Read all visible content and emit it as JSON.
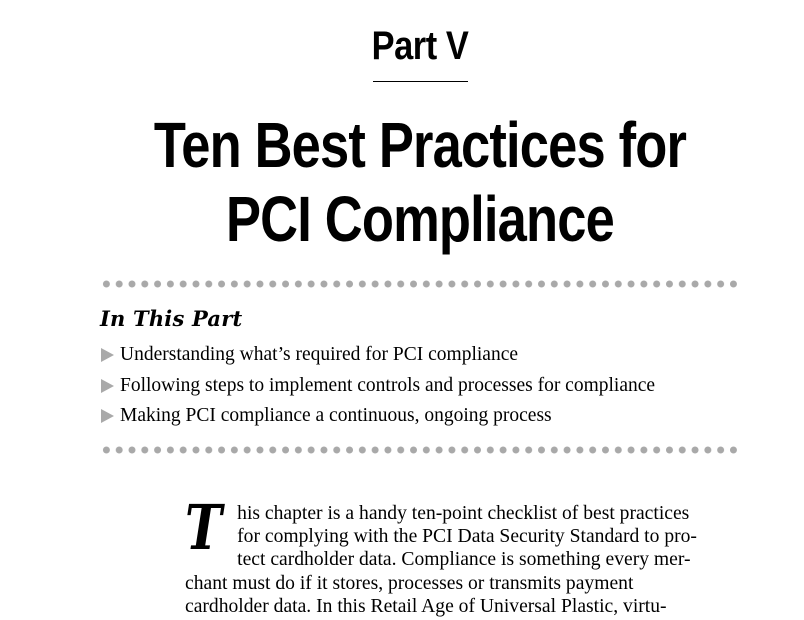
{
  "part": {
    "label": "Part V",
    "title_line1": "Ten Best Practices for",
    "title_line2": "PCI Compliance"
  },
  "in_this_part": {
    "heading": "In This Part",
    "items": [
      "Understanding what’s required for PCI compliance",
      "Following steps to implement controls and processes for compliance",
      "Making PCI compliance a continuous, ongoing process"
    ]
  },
  "body": {
    "drop_cap": "T",
    "lines": [
      "his chapter is a handy ten-point checklist of best practices",
      "for complying with the PCI Data Security Standard to pro-",
      "tect cardholder data. Compliance is something every mer-",
      "chant must do if it stores, processes or transmits payment",
      "cardholder data. In this Retail Age of Universal Plastic, virtu-"
    ]
  },
  "colors": {
    "text": "#000000",
    "dots": "#a9a9a9",
    "arrow": "#a9a9a9",
    "background": "#ffffff"
  },
  "icons": {
    "bullet": "triangle-arrow-right-icon"
  }
}
